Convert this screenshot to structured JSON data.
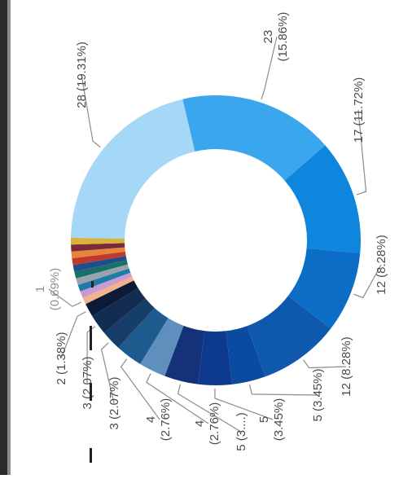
{
  "chart_data": {
    "type": "donut",
    "rotated": "90deg clockwise",
    "slices": [
      {
        "value": 28,
        "label": "28 (19.31%)",
        "color": "#a5d8f7"
      },
      {
        "value": 23,
        "label": "23 (15.86%)",
        "color": "#3aa6ee"
      },
      {
        "value": 17,
        "label": "17 (11.72%)",
        "color": "#0f86dd"
      },
      {
        "value": 12,
        "label": "12 (8.28%)",
        "color": "#0b6dc6"
      },
      {
        "value": 12,
        "label": "12 (8.28%)",
        "color": "#0e58ae"
      },
      {
        "value": 5,
        "label": "5 (3.45%)",
        "color": "#0b4aa1"
      },
      {
        "value": 5,
        "label": "5 (3.45%)",
        "color": "#0d3a8e"
      },
      {
        "value": 5,
        "label": "5 (3....)",
        "color": "#14317a"
      },
      {
        "value": 4,
        "label": "4 (2.76%)",
        "color": "#5f8fbd"
      },
      {
        "value": 4,
        "label": "4 (2.76%)",
        "color": "#1f5a8f"
      },
      {
        "value": 3,
        "label": "3 (2.07%)",
        "color": "#163e68"
      },
      {
        "value": 3,
        "label": "3 (2.07%)",
        "color": "#122c52"
      },
      {
        "value": 2,
        "label": "2 (1.38%)",
        "color": "#0c1a38"
      },
      {
        "value": 1,
        "label": "1 (0.69%)",
        "color": "#f3b18c"
      },
      {
        "value": 1,
        "label": "",
        "color": "#c79ad2"
      },
      {
        "value": 1,
        "label": "",
        "color": "#1e7ba8"
      },
      {
        "value": 1,
        "label": "",
        "color": "#9aa3ac"
      },
      {
        "value": 1,
        "label": "",
        "color": "#17706a"
      },
      {
        "value": 1,
        "label": "",
        "color": "#1e4f8a"
      },
      {
        "value": 1,
        "label": "",
        "color": "#c0392b"
      },
      {
        "value": 1,
        "label": "",
        "color": "#e8843a"
      },
      {
        "value": 1,
        "label": "",
        "color": "#7a2a3a"
      },
      {
        "value": 1,
        "label": "",
        "color": "#d9b23a"
      }
    ]
  }
}
